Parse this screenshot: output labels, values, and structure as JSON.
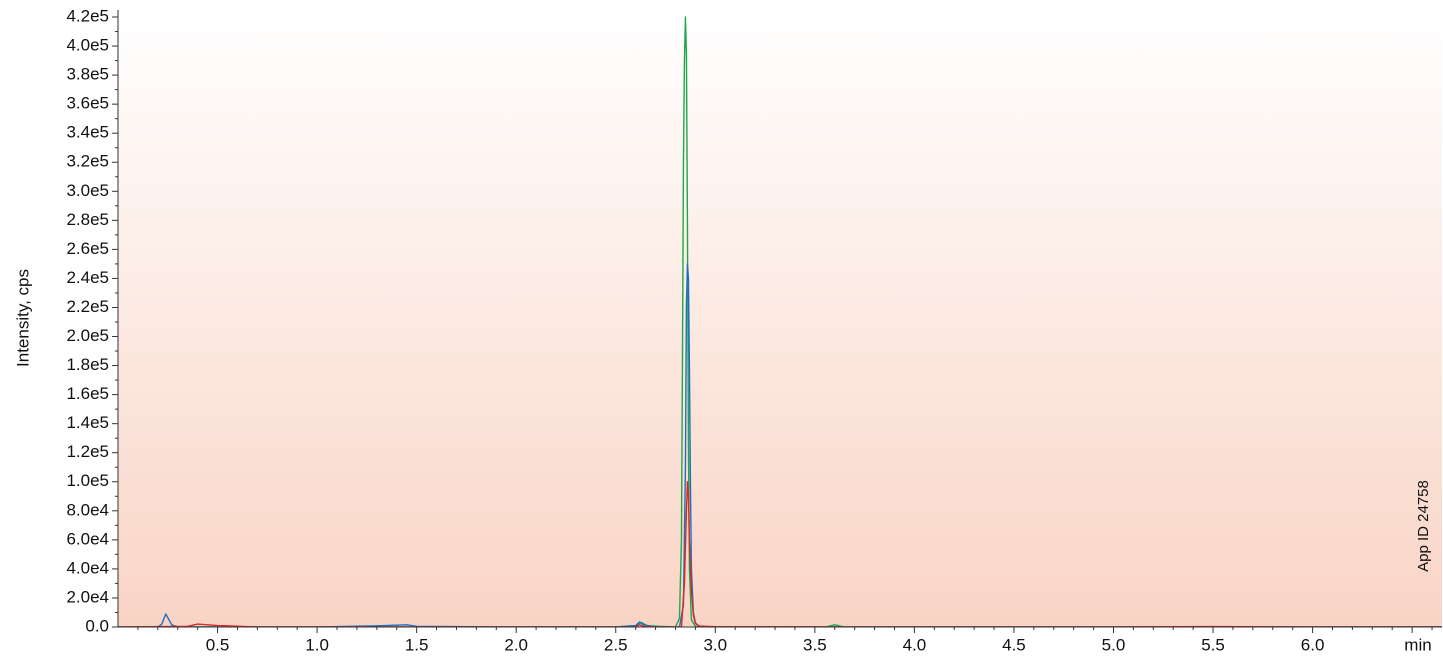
{
  "chart_data": {
    "type": "line",
    "title": "",
    "xlabel": "min",
    "ylabel": "Intensity, cps",
    "xlim": [
      0.0,
      6.65
    ],
    "ylim": [
      0,
      420000
    ],
    "x_ticks": [
      0.5,
      1.0,
      1.5,
      2.0,
      2.5,
      3.0,
      3.5,
      4.0,
      4.5,
      5.0,
      5.5,
      6.0
    ],
    "x_tick_labels": [
      "0.5",
      "1.0",
      "1.5",
      "2.0",
      "2.5",
      "3.0",
      "3.5",
      "4.0",
      "4.5",
      "5.0",
      "5.5",
      "6.0"
    ],
    "y_ticks": [
      0,
      20000,
      40000,
      60000,
      80000,
      100000,
      120000,
      140000,
      160000,
      180000,
      200000,
      220000,
      240000,
      260000,
      280000,
      300000,
      320000,
      340000,
      360000,
      380000,
      400000,
      420000
    ],
    "y_tick_labels": [
      "0.0",
      "2.0e4",
      "4.0e4",
      "6.0e4",
      "8.0e4",
      "1.0e5",
      "1.2e5",
      "1.4e5",
      "1.6e5",
      "1.8e5",
      "2.0e5",
      "2.2e5",
      "2.4e5",
      "2.6e5",
      "2.8e5",
      "3.0e5",
      "3.2e5",
      "3.4e5",
      "3.6e5",
      "3.8e5",
      "4.0e5",
      "4.2e5"
    ],
    "grid": false,
    "legend": "none",
    "background_gradient": [
      "#ffffff",
      "#f9d4c5"
    ],
    "annotation": "App ID 24758",
    "series": [
      {
        "color": "#1fa84a",
        "x": [
          0.0,
          0.5,
          1.0,
          1.5,
          2.0,
          2.5,
          2.6,
          2.63,
          2.66,
          2.8,
          2.82,
          2.83,
          2.835,
          2.84,
          2.845,
          2.85,
          2.855,
          2.86,
          2.865,
          2.87,
          2.88,
          2.9,
          3.0,
          3.55,
          3.6,
          3.65,
          4.0,
          5.0,
          6.0,
          6.65
        ],
        "y": [
          0,
          0,
          0,
          0,
          0,
          0,
          1000,
          3000,
          800,
          0,
          6000,
          60000,
          180000,
          320000,
          390000,
          420000,
          395000,
          280000,
          130000,
          40000,
          5000,
          500,
          0,
          0,
          1500,
          0,
          0,
          0,
          0,
          0
        ]
      },
      {
        "color": "#1f6fc0",
        "x": [
          0.0,
          0.2,
          0.22,
          0.24,
          0.27,
          0.3,
          0.5,
          1.0,
          1.3,
          1.45,
          1.5,
          2.0,
          2.5,
          2.6,
          2.62,
          2.64,
          2.7,
          2.82,
          2.84,
          2.85,
          2.855,
          2.86,
          2.865,
          2.87,
          2.875,
          2.88,
          2.89,
          2.9,
          2.92,
          3.0,
          4.0,
          5.0,
          6.0,
          6.65
        ],
        "y": [
          0,
          0,
          2000,
          9000,
          1500,
          0,
          0,
          0,
          800,
          1500,
          500,
          0,
          0,
          1000,
          3500,
          1500,
          0,
          0,
          15000,
          110000,
          220000,
          250000,
          240000,
          180000,
          100000,
          40000,
          10000,
          3000,
          0,
          0,
          0,
          0,
          0,
          0
        ]
      },
      {
        "color": "#d62a2a",
        "x": [
          0.0,
          0.35,
          0.4,
          0.45,
          0.5,
          0.55,
          0.7,
          1.0,
          2.0,
          2.6,
          2.62,
          2.64,
          2.7,
          2.83,
          2.845,
          2.855,
          2.86,
          2.865,
          2.87,
          2.88,
          2.89,
          2.9,
          2.92,
          3.0,
          4.0,
          5.0,
          5.5,
          6.0,
          6.65
        ],
        "y": [
          0,
          500,
          2000,
          1500,
          1000,
          800,
          0,
          0,
          0,
          0,
          1500,
          500,
          0,
          0,
          30000,
          80000,
          100000,
          90000,
          60000,
          25000,
          8000,
          2500,
          600,
          200,
          0,
          0,
          300,
          0,
          0
        ]
      }
    ]
  }
}
